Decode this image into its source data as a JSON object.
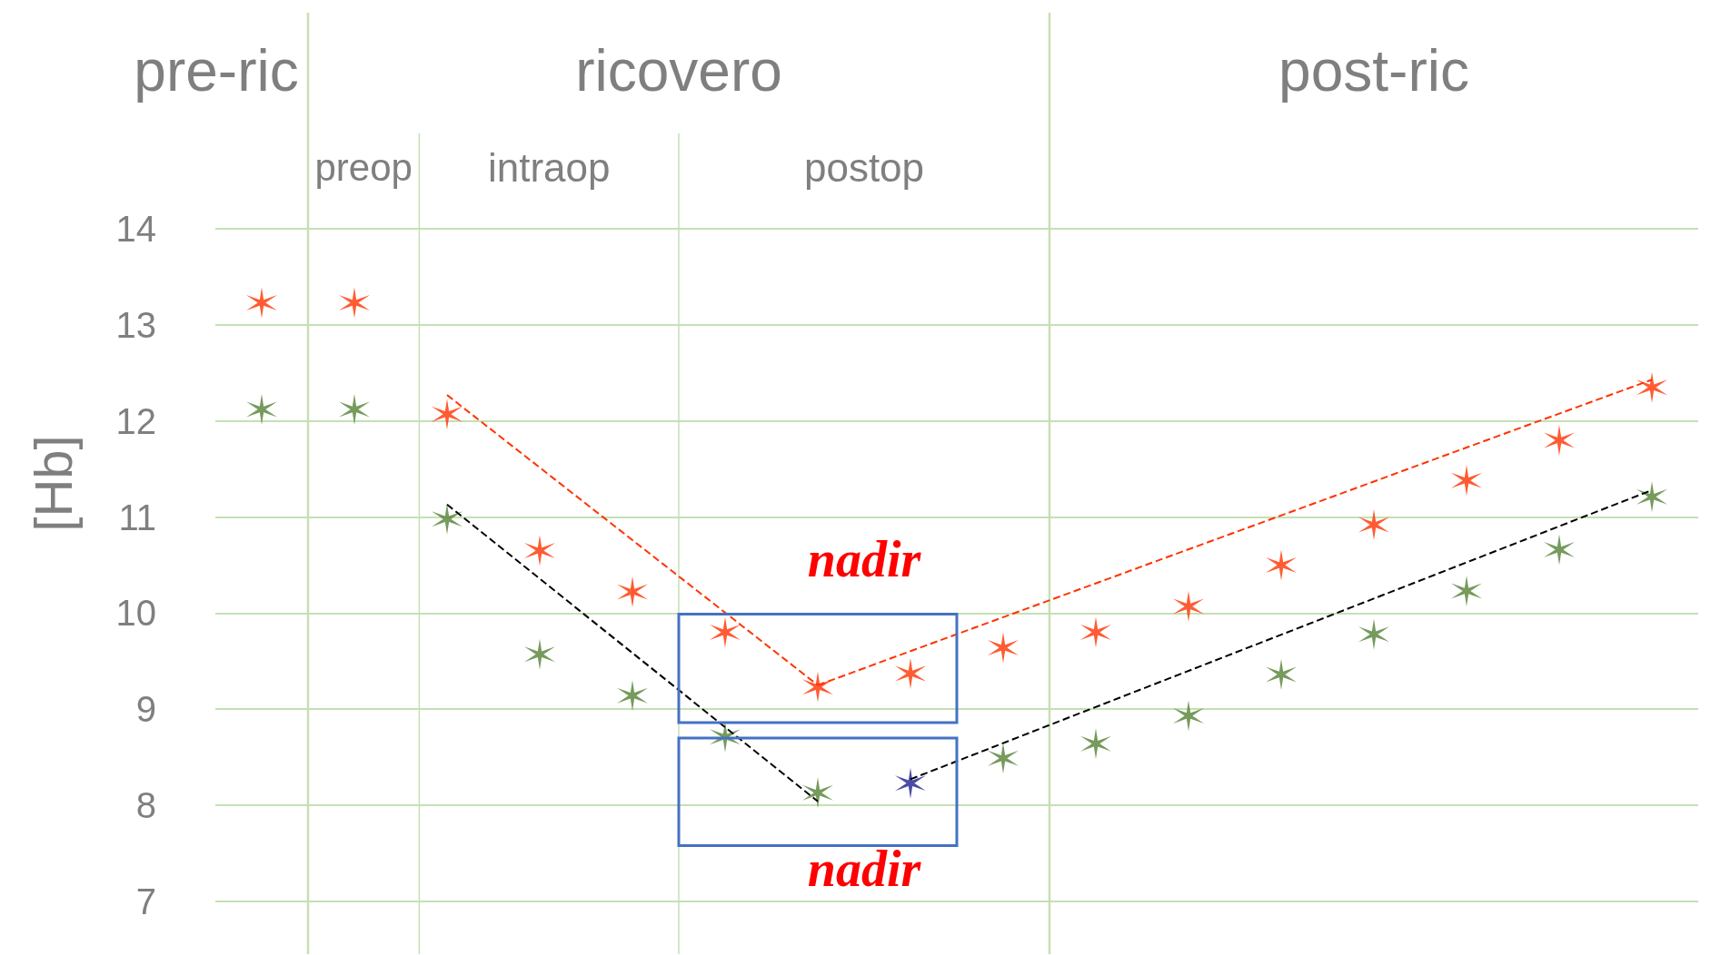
{
  "chart_data": {
    "type": "scatter",
    "ylabel": "[Hb]",
    "categories": [
      null,
      null,
      null,
      null,
      null,
      null,
      null,
      null,
      null,
      null,
      null,
      null,
      null,
      null,
      null,
      null
    ],
    "series": [
      {
        "color": "#ff3300",
        "values": [
          13.23,
          13.23,
          12.07,
          10.65,
          10.22,
          9.8,
          9.23,
          9.37,
          9.64,
          9.8,
          10.07,
          10.5,
          10.92,
          11.38,
          11.8,
          12.35
        ]
      },
      {
        "colors": [
          "#548235",
          "#548235",
          "#548235",
          "#548235",
          "#548235",
          "#548235",
          "#548235",
          "#1f1f8f",
          "#548235",
          "#548235",
          "#548235",
          "#548235",
          "#548235",
          "#548235",
          "#548235",
          "#548235"
        ],
        "values": [
          12.12,
          12.12,
          10.98,
          9.57,
          9.14,
          8.71,
          8.13,
          8.23,
          8.49,
          8.64,
          8.93,
          9.36,
          9.78,
          10.23,
          10.66,
          11.21
        ]
      },
      {
        "type": "line",
        "marker": "none",
        "color": "#ff3300",
        "line_style": "dashed",
        "values": [
          null,
          null,
          12.27,
          null,
          null,
          null,
          9.25,
          null,
          null,
          null,
          null,
          null,
          null,
          null,
          null,
          null
        ]
      },
      {
        "type": "line",
        "marker": "none",
        "color": "#ff3300",
        "line_style": "dashed",
        "values": [
          null,
          null,
          null,
          null,
          null,
          null,
          9.25,
          null,
          null,
          null,
          null,
          null,
          null,
          null,
          null,
          12.43
        ]
      },
      {
        "type": "line",
        "marker": "none",
        "color": "#000000",
        "line_style": "dashed",
        "values": [
          null,
          null,
          11.13,
          null,
          null,
          null,
          8.04,
          null,
          null,
          null,
          null,
          null,
          null,
          null,
          null,
          null
        ]
      },
      {
        "type": "line",
        "marker": "none",
        "color": "#000000",
        "line_style": "dashed",
        "values": [
          null,
          null,
          null,
          null,
          null,
          null,
          null,
          8.27,
          null,
          null,
          null,
          null,
          null,
          null,
          null,
          11.28
        ]
      }
    ],
    "marker": "cross",
    "ylim": [
      6.45,
      16.25
    ],
    "yticks": [
      7,
      8,
      9,
      10,
      11,
      12,
      13,
      14
    ],
    "tick_labels": "y",
    "grid": "y",
    "annotations": [
      "pre-ric",
      "ricovero",
      "post-ric",
      "preop",
      "intraop",
      "postop",
      "nadir",
      "nadir"
    ]
  }
}
